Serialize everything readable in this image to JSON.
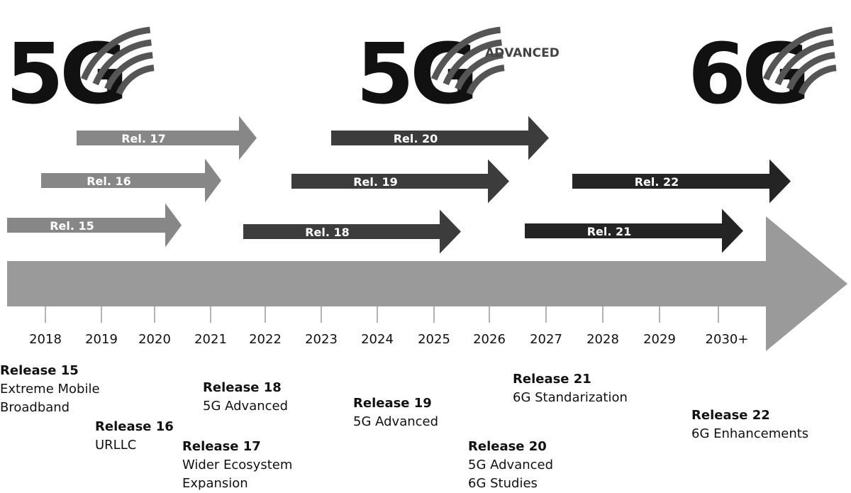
{
  "logos": [
    {
      "text": "5G",
      "suffix": ""
    },
    {
      "text": "5G",
      "suffix": "ADVANCED"
    },
    {
      "text": "6G",
      "suffix": ""
    }
  ],
  "colors": {
    "early_arrows": "#878787",
    "mid_arrows": "#3c3c3c",
    "late_arrows": "#242424",
    "timeline": "#9a9a9a"
  },
  "years": [
    "2018",
    "2019",
    "2020",
    "2021",
    "2022",
    "2023",
    "2024",
    "2025",
    "2026",
    "2027",
    "2028",
    "2029",
    "2030+"
  ],
  "arrows": [
    {
      "label": "Rel. 15",
      "tone": "early_arrows"
    },
    {
      "label": "Rel. 16",
      "tone": "early_arrows"
    },
    {
      "label": "Rel. 17",
      "tone": "early_arrows"
    },
    {
      "label": "Rel. 18",
      "tone": "mid_arrows"
    },
    {
      "label": "Rel. 19",
      "tone": "mid_arrows"
    },
    {
      "label": "Rel. 20",
      "tone": "mid_arrows"
    },
    {
      "label": "Rel. 21",
      "tone": "late_arrows"
    },
    {
      "label": "Rel. 22",
      "tone": "late_arrows"
    }
  ],
  "releases": [
    {
      "title": "Release 15",
      "lines": [
        "Extreme Mobile",
        "Broadband"
      ]
    },
    {
      "title": "Release 16",
      "lines": [
        "URLLC"
      ]
    },
    {
      "title": "Release 17",
      "lines": [
        "Wider Ecosystem",
        "Expansion"
      ]
    },
    {
      "title": "Release 18",
      "lines": [
        "5G Advanced"
      ]
    },
    {
      "title": "Release 19",
      "lines": [
        "5G Advanced"
      ]
    },
    {
      "title": "Release 20",
      "lines": [
        "5G Advanced",
        "6G Studies"
      ]
    },
    {
      "title": "Release 21",
      "lines": [
        "6G Standarization"
      ]
    },
    {
      "title": "Release 22",
      "lines": [
        "6G Enhancements"
      ]
    }
  ]
}
